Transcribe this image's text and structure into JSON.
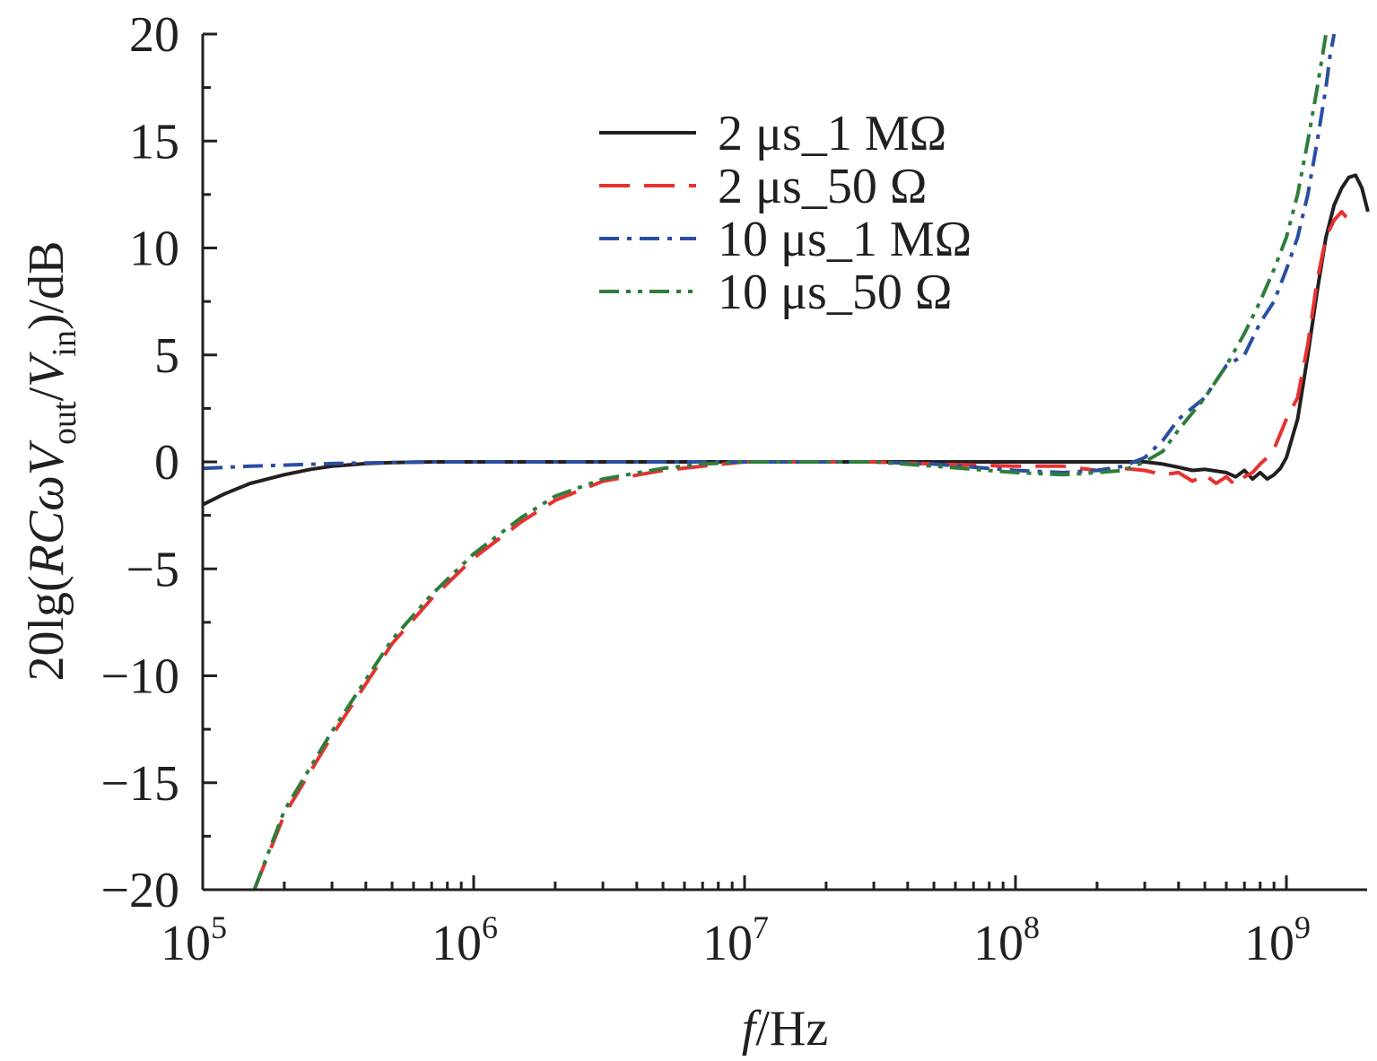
{
  "chart_data": {
    "type": "line",
    "title": "",
    "xlabel": {
      "italic": "f",
      "rest": "/Hz"
    },
    "ylabel": {
      "p1": "20lg(",
      "R": "R",
      "C": "C",
      "omega": "ω",
      "V": "V",
      "sub_out": "out",
      "slash": "/",
      "sub_in": "in",
      "tail": ")/dB"
    },
    "xscale": "log",
    "xlim": [
      100000,
      2000000000
    ],
    "ylim": [
      -20,
      20
    ],
    "xticks": [
      {
        "base": "10",
        "exp": "5",
        "value": 100000
      },
      {
        "base": "10",
        "exp": "6",
        "value": 1000000
      },
      {
        "base": "10",
        "exp": "7",
        "value": 10000000
      },
      {
        "base": "10",
        "exp": "8",
        "value": 100000000
      },
      {
        "base": "10",
        "exp": "9",
        "value": 1000000000
      }
    ],
    "yticks": [
      {
        "label": "20",
        "value": 20
      },
      {
        "label": "15",
        "value": 15
      },
      {
        "label": "10",
        "value": 10
      },
      {
        "label": "5",
        "value": 5
      },
      {
        "label": "0",
        "value": 0
      },
      {
        "label": "−5",
        "value": -5
      },
      {
        "label": "−10",
        "value": -10
      },
      {
        "label": "−15",
        "value": -15
      },
      {
        "label": "−20",
        "value": -20
      }
    ],
    "grid": false,
    "legend_position": "top-center",
    "series": [
      {
        "name": "2 μs_1 MΩ",
        "color": "#231f20",
        "dash": "solid",
        "points": [
          [
            100000,
            -2.0
          ],
          [
            120000,
            -1.5
          ],
          [
            150000,
            -1.0
          ],
          [
            200000,
            -0.6
          ],
          [
            250000,
            -0.35
          ],
          [
            300000,
            -0.2
          ],
          [
            400000,
            -0.08
          ],
          [
            500000,
            -0.03
          ],
          [
            700000,
            0
          ],
          [
            1000000,
            0
          ],
          [
            10000000,
            0
          ],
          [
            100000000,
            0
          ],
          [
            200000000,
            0
          ],
          [
            300000000,
            0
          ],
          [
            350000000,
            -0.1
          ],
          [
            400000000,
            -0.25
          ],
          [
            450000000,
            -0.4
          ],
          [
            500000000,
            -0.35
          ],
          [
            600000000,
            -0.5
          ],
          [
            650000000,
            -0.7
          ],
          [
            700000000,
            -0.4
          ],
          [
            750000000,
            -0.8
          ],
          [
            800000000,
            -0.5
          ],
          [
            850000000,
            -0.8
          ],
          [
            900000000,
            -0.6
          ],
          [
            950000000,
            -0.3
          ],
          [
            1000000000,
            0.2
          ],
          [
            1100000000,
            2.0
          ],
          [
            1200000000,
            5.0
          ],
          [
            1300000000,
            8.0
          ],
          [
            1400000000,
            10.5
          ],
          [
            1500000000,
            12.0
          ],
          [
            1600000000,
            12.8
          ],
          [
            1700000000,
            13.3
          ],
          [
            1800000000,
            13.4
          ],
          [
            1900000000,
            12.8
          ],
          [
            2000000000,
            11.7
          ]
        ]
      },
      {
        "name": "2 μs_50 Ω",
        "color": "#e8312f",
        "dash": "long-dash",
        "points": [
          [
            155000,
            -20
          ],
          [
            200000,
            -16.5
          ],
          [
            300000,
            -12.8
          ],
          [
            500000,
            -8.5
          ],
          [
            700000,
            -6.4
          ],
          [
            1000000,
            -4.5
          ],
          [
            1500000,
            -2.8
          ],
          [
            2000000,
            -1.8
          ],
          [
            3000000,
            -0.9
          ],
          [
            5000000,
            -0.4
          ],
          [
            7000000,
            -0.2
          ],
          [
            10000000,
            0
          ],
          [
            30000000,
            0
          ],
          [
            50000000,
            -0.1
          ],
          [
            100000000,
            -0.2
          ],
          [
            150000000,
            -0.2
          ],
          [
            200000000,
            -0.4
          ],
          [
            250000000,
            -0.3
          ],
          [
            300000000,
            -0.4
          ],
          [
            350000000,
            -0.6
          ],
          [
            400000000,
            -0.5
          ],
          [
            450000000,
            -0.9
          ],
          [
            500000000,
            -0.6
          ],
          [
            550000000,
            -1.0
          ],
          [
            600000000,
            -0.7
          ],
          [
            650000000,
            -1.1
          ],
          [
            700000000,
            -0.7
          ],
          [
            750000000,
            -0.5
          ],
          [
            800000000,
            -0.1
          ],
          [
            850000000,
            0.2
          ],
          [
            900000000,
            0.6
          ],
          [
            1000000000,
            2.0
          ],
          [
            1100000000,
            3.0
          ],
          [
            1200000000,
            5.5
          ],
          [
            1300000000,
            8.5
          ],
          [
            1400000000,
            10.5
          ],
          [
            1500000000,
            11.3
          ],
          [
            1600000000,
            11.7
          ],
          [
            1700000000,
            11.3
          ],
          [
            1750000000,
            10.9
          ]
        ]
      },
      {
        "name": "10 μs_1 MΩ",
        "color": "#2a4ea2",
        "dash": "dash-dot",
        "points": [
          [
            100000,
            -0.3
          ],
          [
            150000,
            -0.2
          ],
          [
            200000,
            -0.15
          ],
          [
            300000,
            -0.08
          ],
          [
            500000,
            -0.03
          ],
          [
            700000,
            0
          ],
          [
            1000000,
            0
          ],
          [
            10000000,
            0
          ],
          [
            30000000,
            0
          ],
          [
            50000000,
            -0.1
          ],
          [
            100000000,
            -0.4
          ],
          [
            150000000,
            -0.5
          ],
          [
            200000000,
            -0.4
          ],
          [
            250000000,
            -0.2
          ],
          [
            300000000,
            0.2
          ],
          [
            350000000,
            1.0
          ],
          [
            400000000,
            2.0
          ],
          [
            500000000,
            3.0
          ],
          [
            600000000,
            4.5
          ],
          [
            700000000,
            5.0
          ],
          [
            800000000,
            6.5
          ],
          [
            900000000,
            7.5
          ],
          [
            1000000000,
            9.0
          ],
          [
            1100000000,
            10.5
          ],
          [
            1200000000,
            12.5
          ],
          [
            1300000000,
            15.0
          ],
          [
            1400000000,
            17.5
          ],
          [
            1450000000,
            19.0
          ],
          [
            1500000000,
            20
          ]
        ]
      },
      {
        "name": "10 μs_50 Ω",
        "color": "#2e7d3c",
        "dash": "dash-dot-dot",
        "points": [
          [
            155000,
            -20
          ],
          [
            200000,
            -16.3
          ],
          [
            300000,
            -12.6
          ],
          [
            500000,
            -8.3
          ],
          [
            700000,
            -6.2
          ],
          [
            1000000,
            -4.3
          ],
          [
            1500000,
            -2.6
          ],
          [
            2000000,
            -1.6
          ],
          [
            3000000,
            -0.8
          ],
          [
            5000000,
            -0.3
          ],
          [
            7000000,
            -0.1
          ],
          [
            10000000,
            0
          ],
          [
            30000000,
            0
          ],
          [
            50000000,
            -0.2
          ],
          [
            100000000,
            -0.5
          ],
          [
            150000000,
            -0.6
          ],
          [
            200000000,
            -0.5
          ],
          [
            250000000,
            -0.4
          ],
          [
            300000000,
            0
          ],
          [
            350000000,
            0.5
          ],
          [
            400000000,
            1.5
          ],
          [
            500000000,
            3.0
          ],
          [
            600000000,
            4.5
          ],
          [
            700000000,
            6.0
          ],
          [
            800000000,
            7.5
          ],
          [
            900000000,
            9.0
          ],
          [
            1000000000,
            10.5
          ],
          [
            1100000000,
            12.5
          ],
          [
            1200000000,
            15.0
          ],
          [
            1300000000,
            17.5
          ],
          [
            1400000000,
            20
          ]
        ]
      }
    ]
  }
}
